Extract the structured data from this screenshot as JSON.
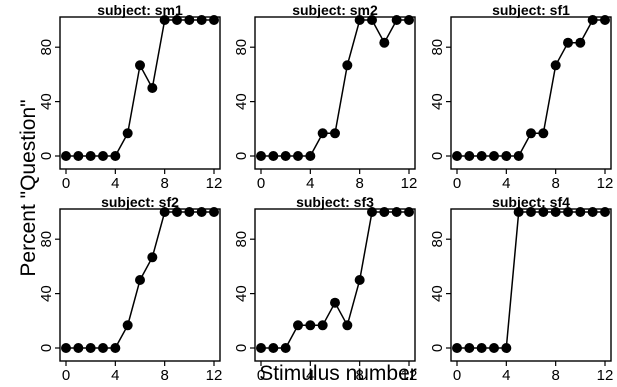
{
  "figure": {
    "ylabel": "Percent \"Question\"",
    "xlabel": "Stimulus number"
  },
  "chart_data": [
    {
      "type": "line",
      "title": "subject:  sm1",
      "x": [
        0,
        1,
        2,
        3,
        4,
        5,
        6,
        7,
        8,
        9,
        10,
        11,
        12
      ],
      "y": [
        0,
        0,
        0,
        0,
        0,
        16.7,
        66.7,
        50,
        100,
        100,
        100,
        100,
        100
      ],
      "xlim": [
        0,
        12
      ],
      "ylim": [
        0,
        100
      ],
      "xticks": [
        0,
        4,
        8,
        12
      ],
      "yticks": [
        0,
        40,
        80
      ]
    },
    {
      "type": "line",
      "title": "subject:  sm2",
      "x": [
        0,
        1,
        2,
        3,
        4,
        5,
        6,
        7,
        8,
        9,
        10,
        11,
        12
      ],
      "y": [
        0,
        0,
        0,
        0,
        0,
        16.7,
        16.7,
        66.7,
        100,
        100,
        83.3,
        100,
        100
      ],
      "xlim": [
        0,
        12
      ],
      "ylim": [
        0,
        100
      ],
      "xticks": [
        0,
        4,
        8,
        12
      ],
      "yticks": [
        0,
        40,
        80
      ]
    },
    {
      "type": "line",
      "title": "subject:  sf1",
      "x": [
        0,
        1,
        2,
        3,
        4,
        5,
        6,
        7,
        8,
        9,
        10,
        11,
        12
      ],
      "y": [
        0,
        0,
        0,
        0,
        0,
        0,
        16.7,
        16.7,
        66.7,
        83.3,
        83.3,
        100,
        100
      ],
      "xlim": [
        0,
        12
      ],
      "ylim": [
        0,
        100
      ],
      "xticks": [
        0,
        4,
        8,
        12
      ],
      "yticks": [
        0,
        40,
        80
      ]
    },
    {
      "type": "line",
      "title": "subject:  sf2",
      "x": [
        0,
        1,
        2,
        3,
        4,
        5,
        6,
        7,
        8,
        9,
        10,
        11,
        12
      ],
      "y": [
        0,
        0,
        0,
        0,
        0,
        16.7,
        50,
        66.7,
        100,
        100,
        100,
        100,
        100
      ],
      "xlim": [
        0,
        12
      ],
      "ylim": [
        0,
        100
      ],
      "xticks": [
        0,
        4,
        8,
        12
      ],
      "yticks": [
        0,
        40,
        80
      ]
    },
    {
      "type": "line",
      "title": "subject:  sf3",
      "x": [
        0,
        1,
        2,
        3,
        4,
        5,
        6,
        7,
        8,
        9,
        10,
        11,
        12
      ],
      "y": [
        0,
        0,
        0,
        16.7,
        16.7,
        16.7,
        33.3,
        16.7,
        50,
        100,
        100,
        100,
        100
      ],
      "xlim": [
        0,
        12
      ],
      "ylim": [
        0,
        100
      ],
      "xticks": [
        0,
        4,
        8,
        12
      ],
      "yticks": [
        0,
        40,
        80
      ]
    },
    {
      "type": "line",
      "title": "subject:  sf4",
      "x": [
        0,
        1,
        2,
        3,
        4,
        5,
        6,
        7,
        8,
        9,
        10,
        11,
        12
      ],
      "y": [
        0,
        0,
        0,
        0,
        0,
        100,
        100,
        100,
        100,
        100,
        100,
        100,
        100
      ],
      "xlim": [
        0,
        12
      ],
      "ylim": [
        0,
        100
      ],
      "xticks": [
        0,
        4,
        8,
        12
      ],
      "yticks": [
        0,
        40,
        80
      ]
    }
  ]
}
